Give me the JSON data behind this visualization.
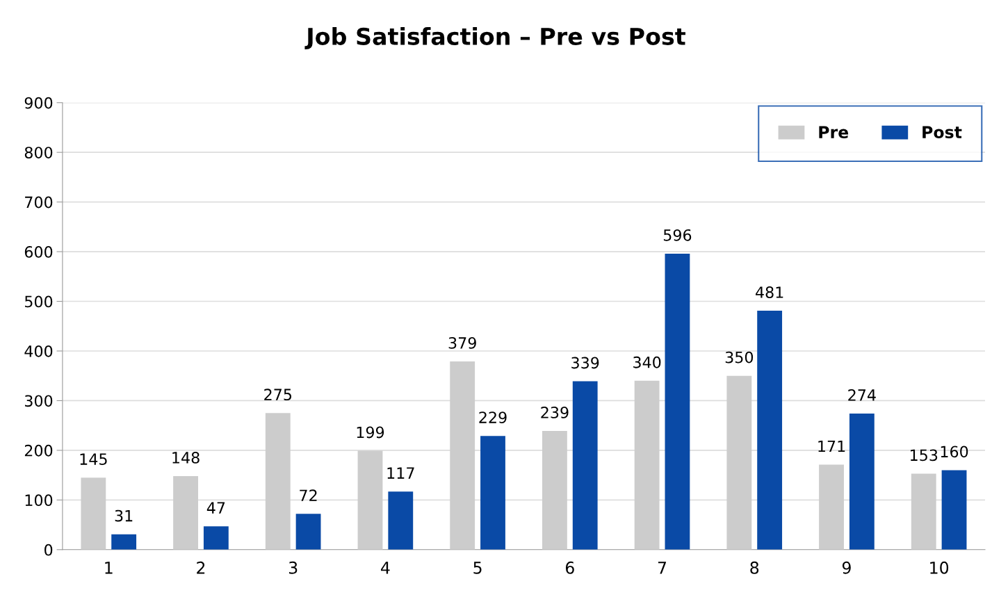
{
  "chart_data": {
    "type": "bar",
    "title": "Job Satisfaction – Pre vs Post",
    "categories": [
      "1",
      "2",
      "3",
      "4",
      "5",
      "6",
      "7",
      "8",
      "9",
      "10"
    ],
    "series": [
      {
        "name": "Pre",
        "color": "#cccccc",
        "values": [
          145,
          148,
          275,
          199,
          379,
          239,
          340,
          350,
          171,
          153
        ]
      },
      {
        "name": "Post",
        "color": "#0a4aa6",
        "values": [
          31,
          47,
          72,
          117,
          229,
          339,
          596,
          481,
          274,
          160
        ]
      }
    ],
    "ylim": [
      0,
      900
    ],
    "yticks": [
      0,
      100,
      200,
      300,
      400,
      500,
      600,
      700,
      800,
      900
    ],
    "grid": "y",
    "legend": "top right",
    "data_labels": true
  }
}
